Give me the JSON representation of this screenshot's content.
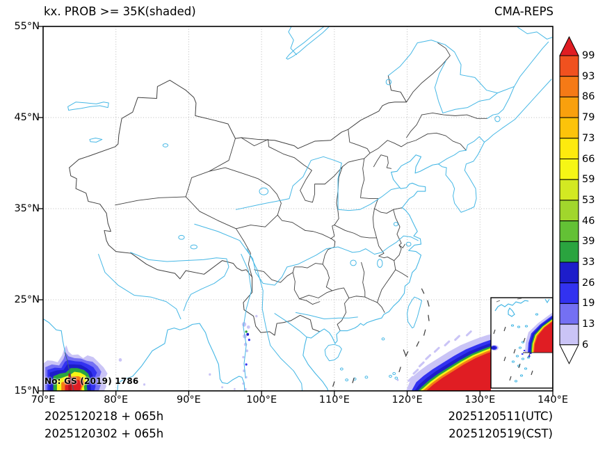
{
  "header": {
    "title": "kx. PROB >= 35K(shaded)",
    "source": "CMA-REPS"
  },
  "axes": {
    "lon_labels": [
      "70°E",
      "80°E",
      "90°E",
      "100°E",
      "110°E",
      "120°E",
      "130°E",
      "140°E"
    ],
    "lat_labels": [
      "55°N",
      "45°N",
      "35°N",
      "25°N",
      "15°N"
    ]
  },
  "footer": {
    "init_line1": "2025120218  +  065h",
    "init_line2": "2025120302  +  065h",
    "valid_line1": "2025120511(UTC)",
    "valid_line2": "2025120519(CST)"
  },
  "map": {
    "watermark": "No: GS (2019) 1786",
    "line_colors": {
      "coast_river": "#45b7e5",
      "boundary": "#3f3f3f",
      "gridline": "#b8b8b8",
      "frame": "#000000",
      "coast_over_shading": "#3d5f80"
    }
  },
  "chart_data": {
    "type": "filled_contour_map",
    "title": "kx. PROB >= 35K(shaded)",
    "model": "CMA-REPS",
    "variable": "Probability of K index >= 35K",
    "units": "%",
    "lon_range": [
      70,
      140
    ],
    "lat_range": [
      15,
      55
    ],
    "grid_interval_deg": 10,
    "contour_levels": [
      6,
      13,
      19,
      26,
      33,
      39,
      46,
      53,
      59,
      66,
      73,
      79,
      86,
      93,
      99
    ],
    "colorbar_labels": [
      "99",
      "93",
      "86",
      "79",
      "73",
      "66",
      "59",
      "53",
      "46",
      "39",
      "33",
      "26",
      "19",
      "13",
      "6"
    ],
    "palette": {
      "6": "#cac4f6",
      "13": "#7470f3",
      "19": "#3232f0",
      "26": "#1d1dca",
      "33": "#2aa43f",
      "39": "#63c135",
      "46": "#a1d62c",
      "53": "#d3e922",
      "59": "#f6f615",
      "66": "#fdea0e",
      "73": "#fcc30a",
      "79": "#f9a00d",
      "86": "#f57a16",
      "93": "#f0511f",
      "99": "#e01d23",
      "dark": "#b5121a",
      "under": "#ffffff"
    },
    "init_times": [
      "2025120218 + 065h",
      "2025120302 + 065h"
    ],
    "valid_times": [
      "2025120511(UTC)",
      "2025120519(CST)"
    ],
    "maxima": [
      {
        "region": "Arabian Sea off west coast of India",
        "approx_center_lonlat": [
          74.5,
          16.2
        ],
        "peak": ">99"
      },
      {
        "region": "Northwest Pacific / Philippine Sea southeast of Taiwan",
        "approx_extent": "120E-140E south of 21N",
        "peak": ">99"
      },
      {
        "region": "Myanmar strip ~97.5-98.5E, 15-23N",
        "peak": "scattered 6-33"
      },
      {
        "region": "South China Sea (inset, eastern edge)",
        "peak": ">99"
      }
    ],
    "legend_position": "right",
    "grid": "dotted"
  }
}
